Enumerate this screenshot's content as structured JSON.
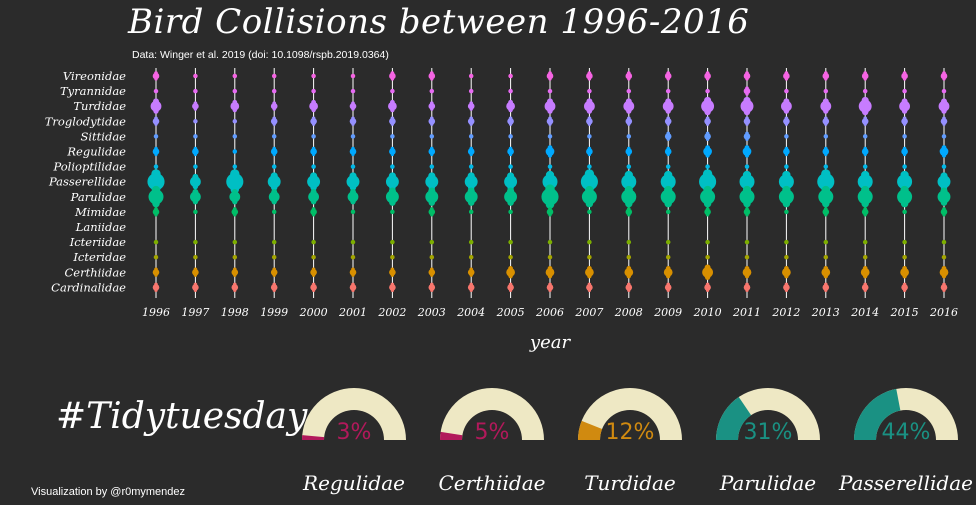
{
  "title": "Bird Collisions between 1996-2016",
  "subtitle": "Data: Winger et al. 2019 (doi: 10.1098/rspb.2019.0364)",
  "hashtag": "#Tidytuesday",
  "credit": "Visualization by @r0mymendez",
  "chart_data": [
    {
      "type": "scatter",
      "title": "Bird Collisions between 1996-2016",
      "xlabel": "year",
      "ylabel": "",
      "years": [
        "1996",
        "1997",
        "1998",
        "1999",
        "2000",
        "2001",
        "2002",
        "2003",
        "2004",
        "2005",
        "2006",
        "2007",
        "2008",
        "2009",
        "2010",
        "2011",
        "2012",
        "2013",
        "2014",
        "2015",
        "2016"
      ],
      "families": [
        "Vireonidae",
        "Tyrannidae",
        "Turdidae",
        "Troglodytidae",
        "Sittidae",
        "Regulidae",
        "Polioptilidae",
        "Passerellidae",
        "Parulidae",
        "Mimidae",
        "Laniidae",
        "Icteriidae",
        "Icteridae",
        "Certhiidae",
        "Cardinalidae"
      ],
      "family_colors": {
        "Vireonidae": "#f564e3",
        "Tyrannidae": "#e76bf3",
        "Turdidae": "#c77cff",
        "Troglodytidae": "#9590ff",
        "Sittidae": "#619cff",
        "Regulidae": "#00a9ff",
        "Polioptilidae": "#00b8e7",
        "Passerellidae": "#00bfc4",
        "Parulidae": "#00c08b",
        "Mimidae": "#00be67",
        "Laniidae": "#39b600",
        "Icteriidae": "#7cae00",
        "Icteridae": "#a3a500",
        "Certhiidae": "#d89000",
        "Cardinalidae": "#f8766d"
      },
      "point_size": "relative collision count per family and year (1 = smallest, 9 = largest)",
      "sizes": {
        "Vireonidae": [
          2,
          1,
          1,
          1,
          1,
          1,
          2,
          2,
          1,
          1,
          2,
          2,
          2,
          2,
          2,
          2,
          2,
          2,
          2,
          2,
          2
        ],
        "Tyrannidae": [
          1,
          1,
          1,
          1,
          1,
          1,
          1,
          1,
          1,
          1,
          1,
          1,
          1,
          1,
          1,
          2,
          1,
          1,
          1,
          1,
          1
        ],
        "Turdidae": [
          4,
          2,
          3,
          2,
          3,
          2,
          3,
          2,
          2,
          3,
          4,
          4,
          4,
          4,
          5,
          5,
          4,
          4,
          5,
          4,
          4
        ],
        "Troglodytidae": [
          2,
          1,
          1,
          2,
          2,
          2,
          2,
          2,
          2,
          2,
          2,
          2,
          2,
          2,
          2,
          2,
          2,
          2,
          2,
          2,
          2
        ],
        "Sittidae": [
          1,
          1,
          1,
          1,
          1,
          1,
          1,
          1,
          1,
          1,
          1,
          1,
          1,
          2,
          2,
          2,
          1,
          1,
          1,
          1,
          1
        ],
        "Regulidae": [
          2,
          2,
          1,
          2,
          2,
          2,
          2,
          2,
          2,
          2,
          3,
          2,
          2,
          2,
          3,
          3,
          2,
          2,
          2,
          2,
          3
        ],
        "Polioptilidae": [
          1,
          1,
          1,
          1,
          1,
          1,
          1,
          1,
          1,
          1,
          1,
          1,
          1,
          1,
          1,
          1,
          1,
          1,
          1,
          1,
          1
        ],
        "Passerellidae": [
          7,
          4,
          7,
          5,
          5,
          5,
          5,
          5,
          5,
          5,
          6,
          7,
          6,
          6,
          7,
          6,
          6,
          7,
          6,
          6,
          5
        ],
        "Parulidae": [
          6,
          4,
          4,
          4,
          4,
          4,
          5,
          5,
          5,
          5,
          7,
          6,
          6,
          6,
          6,
          6,
          6,
          6,
          6,
          6,
          5
        ],
        "Mimidae": [
          2,
          1,
          2,
          1,
          2,
          1,
          1,
          2,
          1,
          1,
          2,
          1,
          2,
          1,
          2,
          2,
          1,
          2,
          2,
          1,
          2
        ],
        "Laniidae": [
          0,
          0,
          0,
          0,
          0,
          0,
          0,
          0,
          0,
          0,
          0,
          0,
          0,
          0,
          0,
          0,
          0,
          0,
          0,
          0,
          0
        ],
        "Icteriidae": [
          1,
          1,
          1,
          1,
          1,
          1,
          1,
          1,
          1,
          1,
          1,
          1,
          1,
          1,
          1,
          1,
          1,
          1,
          1,
          1,
          1
        ],
        "Icteridae": [
          1,
          1,
          1,
          1,
          1,
          1,
          1,
          1,
          1,
          1,
          1,
          1,
          1,
          1,
          1,
          1,
          1,
          1,
          1,
          1,
          1
        ],
        "Certhiidae": [
          2,
          2,
          2,
          2,
          2,
          2,
          2,
          2,
          2,
          3,
          3,
          3,
          3,
          3,
          4,
          3,
          3,
          3,
          3,
          3,
          3
        ],
        "Cardinalidae": [
          2,
          2,
          2,
          2,
          2,
          2,
          2,
          2,
          2,
          2,
          2,
          2,
          2,
          2,
          2,
          2,
          2,
          2,
          2,
          2,
          2
        ]
      },
      "grid": false,
      "legend": "none"
    },
    {
      "type": "gauge",
      "items": [
        {
          "name": "Regulidae",
          "percent": 3,
          "label": "3%",
          "color": "#b2195b"
        },
        {
          "name": "Certhiidae",
          "percent": 5,
          "label": "5%",
          "color": "#b2195b"
        },
        {
          "name": "Turdidae",
          "percent": 12,
          "label": "12%",
          "color": "#d08a10"
        },
        {
          "name": "Parulidae",
          "percent": 31,
          "label": "31%",
          "color": "#1a9183"
        },
        {
          "name": "Passerellidae",
          "percent": 44,
          "label": "44%",
          "color": "#1a9183"
        }
      ],
      "track_color": "#eee8c4"
    }
  ],
  "colors": {
    "background": "#2b2b2b",
    "text": "#ffffff",
    "rule": "#ffffff"
  }
}
